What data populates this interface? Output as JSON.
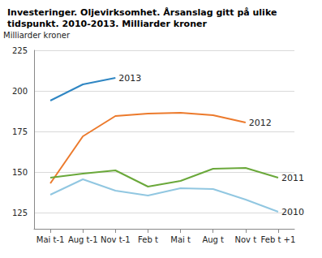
{
  "chart_data": {
    "type": "line",
    "title": "Investeringer. Oljevirksomhet. Årsanslag gitt på ulike tidspunkt. 2010-2013. Milliarder kroner",
    "ylabel": "Milliarder kroner",
    "categories": [
      "Mai t-1",
      "Aug t-1",
      "Nov t-1",
      "Feb t",
      "Mai t",
      "Aug t",
      "Nov t",
      "Feb t +1"
    ],
    "series": [
      {
        "name": "2013",
        "color": "#2f86c3",
        "values": [
          194,
          204,
          208,
          null,
          null,
          null,
          null,
          null
        ]
      },
      {
        "name": "2012",
        "color": "#ec7a2c",
        "values": [
          143,
          172,
          184.5,
          186,
          186.5,
          185,
          180.5,
          null
        ]
      },
      {
        "name": "2011",
        "color": "#6aa83a",
        "values": [
          146.5,
          149,
          151,
          141,
          144.5,
          152,
          152.5,
          146.5
        ]
      },
      {
        "name": "2010",
        "color": "#91c7e1",
        "values": [
          136,
          145.5,
          138.5,
          135.5,
          140,
          139.5,
          133,
          125.5
        ]
      }
    ],
    "ylim": [
      115,
      225
    ],
    "yticks": [
      125,
      150,
      175,
      200,
      225
    ],
    "grid": true
  }
}
